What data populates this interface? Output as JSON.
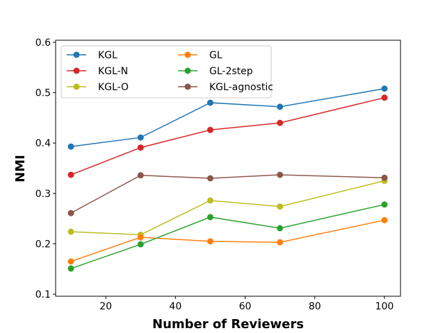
{
  "chart_data": {
    "type": "line",
    "title": "",
    "xlabel": "Number of Reviewers",
    "ylabel": "NMI",
    "xlim": [
      5.6,
      104.6
    ],
    "ylim": [
      0.096,
      0.604
    ],
    "xticks": [
      20,
      40,
      60,
      80,
      100
    ],
    "yticks": [
      0.1,
      0.2,
      0.3,
      0.4,
      0.5,
      0.6
    ],
    "xtick_labels": [
      "20",
      "40",
      "60",
      "80",
      "100"
    ],
    "ytick_labels": [
      "0.1",
      "0.2",
      "0.3",
      "0.4",
      "0.5",
      "0.6"
    ],
    "grid": false,
    "legend_placement": "top-left",
    "x": [
      10,
      30,
      50,
      70,
      100
    ],
    "series": [
      {
        "name": "KGL",
        "color": "#1f77b4",
        "values": [
          0.393,
          0.411,
          0.48,
          0.472,
          0.508
        ]
      },
      {
        "name": "KGL-N",
        "color": "#d62728",
        "values": [
          0.337,
          0.391,
          0.426,
          0.44,
          0.49
        ]
      },
      {
        "name": "KGL-O",
        "color": "#bcbd22",
        "values": [
          0.224,
          0.218,
          0.286,
          0.274,
          0.325
        ]
      },
      {
        "name": "GL",
        "color": "#ff7f0e",
        "values": [
          0.165,
          0.213,
          0.205,
          0.203,
          0.247
        ]
      },
      {
        "name": "GL-2step",
        "color": "#2ca02c",
        "values": [
          0.151,
          0.199,
          0.253,
          0.231,
          0.278
        ]
      },
      {
        "name": "KGL-agnostic",
        "color": "#8c564b",
        "values": [
          0.261,
          0.336,
          0.33,
          0.337,
          0.331
        ]
      }
    ]
  }
}
